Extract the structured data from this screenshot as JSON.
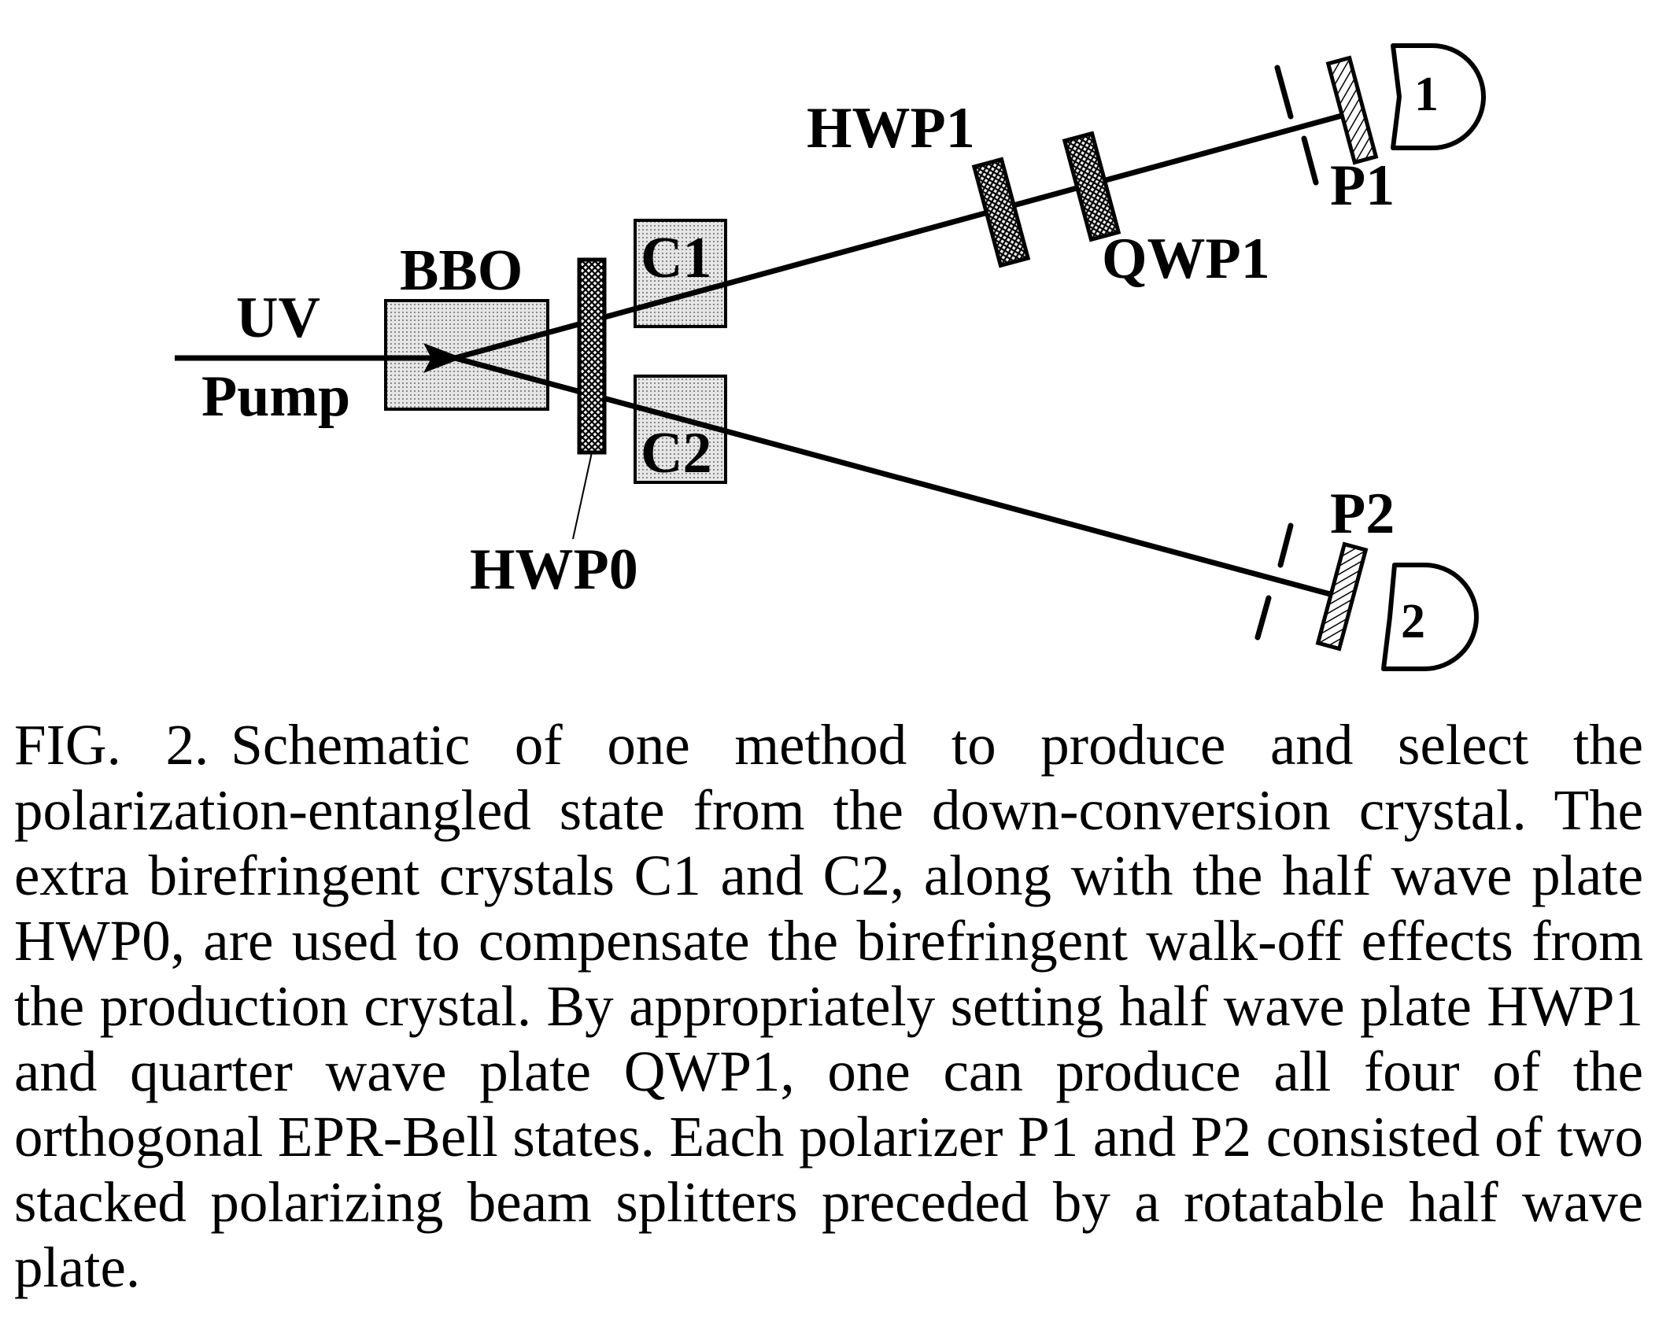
{
  "figure": {
    "labels": {
      "uv": "UV",
      "pump": "Pump",
      "bbo": "BBO",
      "hwp0": "HWP0",
      "c1": "C1",
      "c2": "C2",
      "hwp1": "HWP1",
      "qwp1": "QWP1",
      "p1": "P1",
      "p2": "P2",
      "detector1": "1",
      "detector2": "2"
    },
    "colors": {
      "ink": "#000000",
      "crystal_fill": "#d4d4d4",
      "plate_fill": "#3a3a3a",
      "background": "#ffffff"
    }
  },
  "caption": {
    "label": "FIG. 2.",
    "text": "Schematic of one method to produce and select the polarization-entangled state from the down-conversion crystal. The extra birefringent crystals C1 and C2, along with the half wave plate HWP0, are used to compensate the birefringent walk-off effects from the production crystal. By appropriately setting half wave plate HWP1 and quarter wave plate QWP1, one can produce all four of the orthogonal EPR-Bell states. Each polarizer P1 and P2 consisted of two stacked polarizing beam splitters preceded by a rotatable half wave plate."
  }
}
